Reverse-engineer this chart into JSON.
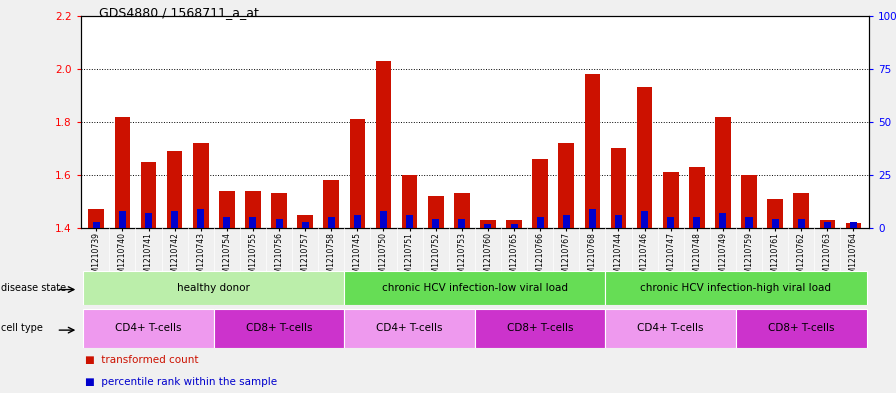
{
  "title": "GDS4880 / 1568711_a_at",
  "samples": [
    "GSM1210739",
    "GSM1210740",
    "GSM1210741",
    "GSM1210742",
    "GSM1210743",
    "GSM1210754",
    "GSM1210755",
    "GSM1210756",
    "GSM1210757",
    "GSM1210758",
    "GSM1210745",
    "GSM1210750",
    "GSM1210751",
    "GSM1210752",
    "GSM1210753",
    "GSM1210760",
    "GSM1210765",
    "GSM1210766",
    "GSM1210767",
    "GSM1210768",
    "GSM1210744",
    "GSM1210746",
    "GSM1210747",
    "GSM1210748",
    "GSM1210749",
    "GSM1210759",
    "GSM1210761",
    "GSM1210762",
    "GSM1210763",
    "GSM1210764"
  ],
  "transformed_count": [
    1.47,
    1.82,
    1.65,
    1.69,
    1.72,
    1.54,
    1.54,
    1.53,
    1.45,
    1.58,
    1.81,
    2.03,
    1.6,
    1.52,
    1.53,
    1.43,
    1.43,
    1.66,
    1.72,
    1.98,
    1.7,
    1.93,
    1.61,
    1.63,
    1.82,
    1.6,
    1.51,
    1.53,
    1.43,
    1.42
  ],
  "percentile_rank": [
    3,
    8,
    7,
    8,
    9,
    5,
    5,
    4,
    3,
    5,
    6,
    8,
    6,
    4,
    4,
    2,
    2,
    5,
    6,
    9,
    6,
    8,
    5,
    5,
    7,
    5,
    4,
    4,
    3,
    3
  ],
  "ylim_left": [
    1.4,
    2.2
  ],
  "ylim_right": [
    0,
    100
  ],
  "yticks_left": [
    1.4,
    1.6,
    1.8,
    2.0,
    2.2
  ],
  "yticks_right": [
    0,
    25,
    50,
    75,
    100
  ],
  "bar_color_red": "#cc1100",
  "bar_color_blue": "#0000cc",
  "disease_state_groups": [
    {
      "label": "healthy donor",
      "start": 0,
      "end": 9,
      "color": "#bbeeaa"
    },
    {
      "label": "chronic HCV infection-low viral load",
      "start": 10,
      "end": 19,
      "color": "#66dd55"
    },
    {
      "label": "chronic HCV infection-high viral load",
      "start": 20,
      "end": 29,
      "color": "#66dd55"
    }
  ],
  "cell_type_groups": [
    {
      "label": "CD4+ T-cells",
      "start": 0,
      "end": 4,
      "color": "#ee99ee"
    },
    {
      "label": "CD8+ T-cells",
      "start": 5,
      "end": 9,
      "color": "#cc33cc"
    },
    {
      "label": "CD4+ T-cells",
      "start": 10,
      "end": 14,
      "color": "#ee99ee"
    },
    {
      "label": "CD8+ T-cells",
      "start": 15,
      "end": 19,
      "color": "#cc33cc"
    },
    {
      "label": "CD4+ T-cells",
      "start": 20,
      "end": 24,
      "color": "#ee99ee"
    },
    {
      "label": "CD8+ T-cells",
      "start": 25,
      "end": 29,
      "color": "#cc33cc"
    }
  ],
  "fig_bg": "#f0f0f0",
  "xtick_bg": "#d8d8d8",
  "plot_bg": "#ffffff"
}
